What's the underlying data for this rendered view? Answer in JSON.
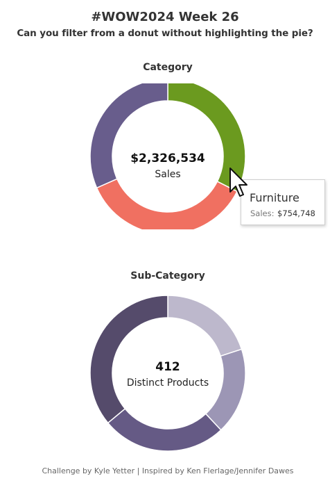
{
  "header": {
    "title": "#WOW2024 Week 26",
    "subtitle": "Can you filter from a donut without highlighting the pie?"
  },
  "chart_data": [
    {
      "type": "pie",
      "title": "Category",
      "center_value": "$2,326,534",
      "center_label": "Sales",
      "categories": [
        "Furniture",
        "",
        ""
      ],
      "values": [
        754748,
        836154,
        735632
      ],
      "colors": [
        "#6b9a1f",
        "#f07061",
        "#685d8c"
      ]
    },
    {
      "type": "pie",
      "title": "Sub-Category",
      "center_value": "412",
      "center_label": "Distinct Products",
      "values": [
        20,
        18,
        26,
        36
      ],
      "colors": [
        "#bdb8cc",
        "#9c96b5",
        "#655a85",
        "#554b6b"
      ]
    }
  ],
  "tooltip": {
    "title": "Furniture",
    "label": "Sales:",
    "value": "$754,748"
  },
  "footer": {
    "text": "Challenge by Kyle Yetter  |  Inspired by Ken Flerlage/Jennifer Dawes"
  }
}
